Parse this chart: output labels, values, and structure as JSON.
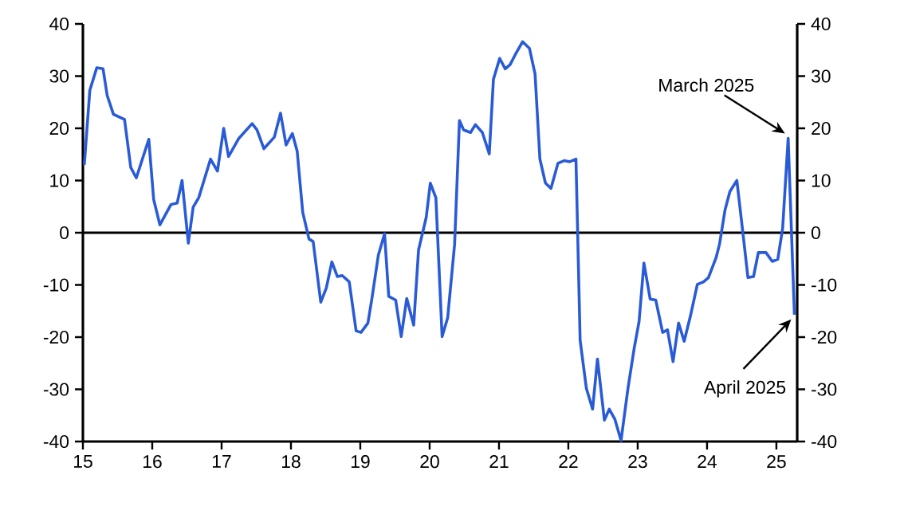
{
  "chart_data": {
    "type": "line",
    "x": [
      15.02,
      15.1,
      15.2,
      15.29,
      15.35,
      15.44,
      15.6,
      15.69,
      15.77,
      15.95,
      16.02,
      16.11,
      16.27,
      16.36,
      16.43,
      16.52,
      16.59,
      16.67,
      16.84,
      16.94,
      17.03,
      17.1,
      17.25,
      17.44,
      17.51,
      17.61,
      17.76,
      17.85,
      17.93,
      18.02,
      18.09,
      18.17,
      18.26,
      18.32,
      18.43,
      18.51,
      18.59,
      18.67,
      18.74,
      18.84,
      18.94,
      19.01,
      19.11,
      19.17,
      19.26,
      19.35,
      19.41,
      19.51,
      19.59,
      19.67,
      19.77,
      19.84,
      19.95,
      20.01,
      20.09,
      20.18,
      20.26,
      20.36,
      20.43,
      20.49,
      20.59,
      20.66,
      20.76,
      20.86,
      20.92,
      21.01,
      21.09,
      21.16,
      21.25,
      21.34,
      21.44,
      21.52,
      21.59,
      21.67,
      21.75,
      21.85,
      21.94,
      22.02,
      22.11,
      22.17,
      22.26,
      22.35,
      22.42,
      22.52,
      22.59,
      22.67,
      22.76,
      22.86,
      22.95,
      23.02,
      23.09,
      23.18,
      23.26,
      23.36,
      23.43,
      23.51,
      23.59,
      23.67,
      23.76,
      23.86,
      23.95,
      24.02,
      24.13,
      24.18,
      24.26,
      24.33,
      24.43,
      24.51,
      24.59,
      24.67,
      24.74,
      24.85,
      24.94,
      25.02,
      25.09,
      25.17,
      25.26
    ],
    "series": [
      {
        "color": "#2a5bd7",
        "values": [
          13.0,
          27.3,
          31.6,
          31.4,
          26.3,
          22.7,
          21.7,
          12.5,
          10.5,
          17.9,
          6.4,
          1.5,
          5.4,
          5.7,
          10.0,
          -2.0,
          4.9,
          6.7,
          14.1,
          11.8,
          20.0,
          14.6,
          18.1,
          20.9,
          19.7,
          16.1,
          18.3,
          22.9,
          16.8,
          19.0,
          15.6,
          3.9,
          -1.2,
          -1.7,
          -13.3,
          -10.6,
          -5.6,
          -8.4,
          -8.2,
          -9.4,
          -18.8,
          -19.1,
          -17.3,
          -12.4,
          -4.3,
          -0.2,
          -12.2,
          -12.9,
          -19.9,
          -12.6,
          -17.7,
          -3.3,
          2.9,
          9.5,
          6.7,
          -19.9,
          -16.3,
          -2.2,
          21.5,
          19.7,
          19.2,
          20.7,
          19.2,
          15.1,
          29.4,
          33.4,
          31.4,
          32.2,
          34.5,
          36.6,
          35.3,
          30.4,
          14.1,
          9.5,
          8.5,
          13.3,
          13.8,
          13.6,
          14.1,
          -20.6,
          -29.8,
          -33.8,
          -24.2,
          -35.9,
          -33.8,
          -35.7,
          -39.8,
          -29.8,
          -22.1,
          -17.0,
          -5.8,
          -12.7,
          -12.9,
          -19.1,
          -18.6,
          -24.7,
          -17.3,
          -20.8,
          -16.0,
          -9.9,
          -9.4,
          -8.6,
          -4.8,
          -2.2,
          4.4,
          7.9,
          10.0,
          0.8,
          -8.6,
          -8.4,
          -3.8,
          -3.8,
          -5.5,
          -5.1,
          0.8,
          18.1,
          -15.7
        ]
      }
    ],
    "xlim": [
      15,
      25.3
    ],
    "xticks": [
      15,
      16,
      17,
      18,
      19,
      20,
      21,
      22,
      23,
      24,
      25
    ],
    "ylim": [
      -40,
      40
    ],
    "yticks": [
      -40,
      -30,
      -20,
      -10,
      0,
      10,
      20,
      30,
      40
    ],
    "y2lim": [
      -40,
      40
    ],
    "y2ticks": [
      -40,
      -30,
      -20,
      -10,
      0,
      10,
      20,
      30,
      40
    ],
    "ref_lines": [
      {
        "axis": "y",
        "value": 0,
        "color": "#000000"
      }
    ],
    "annotations": [
      {
        "text": "March 2025",
        "x": 25.17,
        "y": 18.1
      },
      {
        "text": "April 2025",
        "x": 25.26,
        "y": -15.7
      }
    ],
    "grid": false
  }
}
